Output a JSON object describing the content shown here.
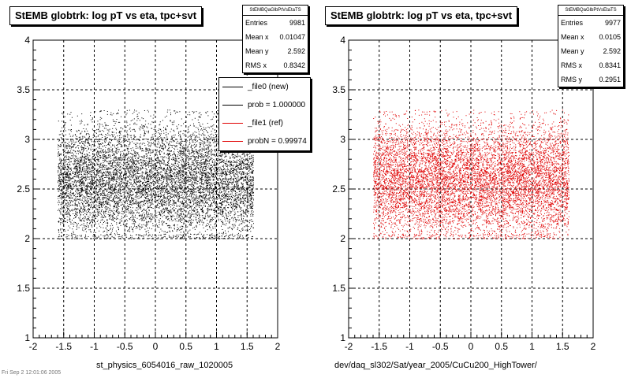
{
  "chart_data": [
    {
      "type": "scatter",
      "title": "StEMB globtrk: log pT vs eta, tpc+svt",
      "xlabel": "st_physics_6054016_raw_1020005",
      "ylabel": "",
      "xlim": [
        -2,
        2
      ],
      "ylim": [
        1,
        4
      ],
      "xticks": [
        "-2",
        "-1.5",
        "-1",
        "-0.5",
        "0",
        "0.5",
        "1",
        "1.5",
        "2"
      ],
      "yticks": [
        "1",
        "1.5",
        "2",
        "2.5",
        "3",
        "3.5",
        "4"
      ],
      "grid": true,
      "marker_color": "#000000",
      "stats": {
        "name": "StEMBQaGlbPtVsEtaTS",
        "rows": [
          {
            "label": "Entries",
            "value": "9981"
          },
          {
            "label": "Mean x",
            "value": "0.01047"
          },
          {
            "label": "Mean y",
            "value": "2.592"
          },
          {
            "label": "RMS x",
            "value": "0.8342"
          }
        ]
      },
      "legend": {
        "position": "top-right",
        "entries": [
          {
            "label": "_file0 (new)",
            "color": "#000000"
          },
          {
            "label": "prob = 1.000000",
            "color": "#000000"
          },
          {
            "label": "_file1 (ref)",
            "color": "#e00000"
          },
          {
            "label": "probN = 0.99974",
            "color": "#e00000"
          }
        ]
      },
      "distribution": {
        "entries": 9981,
        "eta_range": [
          -1.6,
          1.6
        ],
        "mean_y": 2.592,
        "rms_y": 0.2951,
        "y_min": 2.0,
        "y_max": 3.3
      }
    },
    {
      "type": "scatter",
      "title": "StEMB globtrk: log pT vs eta, tpc+svt",
      "xlabel": "dev/daq_sl302/Sat/year_2005/CuCu200_HighTower/",
      "ylabel": "",
      "xlim": [
        -2,
        2
      ],
      "ylim": [
        1,
        4
      ],
      "xticks": [
        "-2",
        "-1.5",
        "-1",
        "-0.5",
        "0",
        "0.5",
        "1",
        "1.5",
        "2"
      ],
      "yticks": [
        "1",
        "1.5",
        "2",
        "2.5",
        "3",
        "3.5",
        "4"
      ],
      "grid": true,
      "marker_color": "#e00000",
      "stats": {
        "name": "StEMBQaGlbPtVsEtaTS",
        "rows": [
          {
            "label": "Entries",
            "value": "9977"
          },
          {
            "label": "Mean x",
            "value": "0.0105"
          },
          {
            "label": "Mean y",
            "value": "2.592"
          },
          {
            "label": "RMS x",
            "value": "0.8341"
          },
          {
            "label": "RMS y",
            "value": "0.2951"
          }
        ]
      },
      "distribution": {
        "entries": 9977,
        "eta_range": [
          -1.6,
          1.6
        ],
        "mean_y": 2.592,
        "rms_y": 0.2951,
        "y_min": 2.0,
        "y_max": 3.3
      }
    }
  ],
  "footer": {
    "date_text": "Fri Sep  2 12:01:06 2005"
  }
}
